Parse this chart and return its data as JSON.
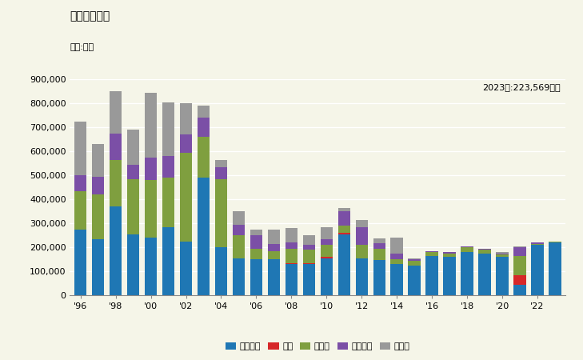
{
  "title": "輸入量の推移",
  "unit_label": "単位:平米",
  "annotation": "2023年:223,569平米",
  "years": [
    1996,
    1997,
    1998,
    1999,
    2000,
    2001,
    2002,
    2003,
    2004,
    2005,
    2006,
    2007,
    2008,
    2009,
    2010,
    2011,
    2012,
    2013,
    2014,
    2015,
    2016,
    2017,
    2018,
    2019,
    2020,
    2021,
    2022,
    2023
  ],
  "オランダ": [
    275000,
    235000,
    370000,
    255000,
    240000,
    285000,
    225000,
    490000,
    200000,
    155000,
    150000,
    150000,
    130000,
    130000,
    155000,
    255000,
    155000,
    148000,
    130000,
    125000,
    165000,
    160000,
    180000,
    175000,
    160000,
    45000,
    210000,
    220000
  ],
  "中国": [
    0,
    0,
    0,
    0,
    0,
    0,
    0,
    0,
    0,
    0,
    0,
    0,
    5000,
    5000,
    5000,
    5000,
    0,
    0,
    0,
    0,
    0,
    0,
    0,
    0,
    0,
    40000,
    0,
    0
  ],
  "ドイツ": [
    160000,
    185000,
    195000,
    230000,
    240000,
    205000,
    370000,
    170000,
    285000,
    95000,
    45000,
    35000,
    60000,
    55000,
    50000,
    30000,
    55000,
    45000,
    20000,
    20000,
    15000,
    15000,
    20000,
    15000,
    10000,
    80000,
    5000,
    5000
  ],
  "イタリア": [
    65000,
    75000,
    110000,
    60000,
    95000,
    90000,
    75000,
    80000,
    50000,
    45000,
    55000,
    30000,
    25000,
    20000,
    25000,
    60000,
    75000,
    25000,
    25000,
    5000,
    5000,
    5000,
    5000,
    5000,
    5000,
    35000,
    5000,
    0
  ],
  "その他": [
    225000,
    135000,
    175000,
    145000,
    270000,
    225000,
    130000,
    50000,
    30000,
    55000,
    25000,
    60000,
    60000,
    40000,
    50000,
    15000,
    30000,
    20000,
    65000,
    5000,
    0,
    0,
    0,
    0,
    5000,
    5000,
    0,
    0
  ],
  "colors": {
    "オランダ": "#1f77b4",
    "中国": "#d62728",
    "ドイツ": "#7f9f3f",
    "イタリア": "#7b4fa6",
    "その他": "#999999"
  },
  "ylim": [
    0,
    900000
  ],
  "yticks": [
    0,
    100000,
    200000,
    300000,
    400000,
    500000,
    600000,
    700000,
    800000,
    900000
  ],
  "background_color": "#f5f5e8"
}
